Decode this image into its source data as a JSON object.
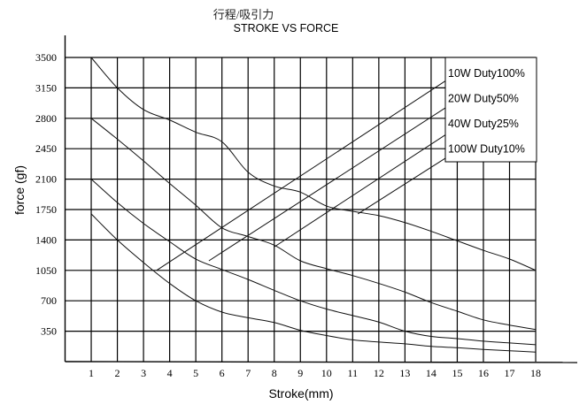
{
  "chart_data": {
    "type": "line",
    "title": "行程/吸引力",
    "subtitle": "STROKE VS FORCE",
    "xlabel": "Stroke(mm)",
    "ylabel": "force (gf)",
    "xlim": [
      0,
      18
    ],
    "ylim": [
      0,
      3500
    ],
    "x_ticks": [
      1,
      2,
      3,
      4,
      5,
      6,
      7,
      8,
      9,
      10,
      11,
      12,
      13,
      14,
      15,
      16,
      17,
      18
    ],
    "y_ticks": [
      350,
      700,
      1050,
      1400,
      1750,
      2100,
      2450,
      2800,
      3150,
      3500
    ],
    "grid": true,
    "legend_placement": "top-right",
    "legend": [
      "10W Duty100%",
      "20W Duty50%",
      "40W Duty25%",
      "100W Duty10%"
    ],
    "x": [
      1,
      2,
      3,
      4,
      5,
      6,
      7,
      8,
      9,
      10,
      11,
      12,
      13,
      14,
      15,
      16,
      17,
      18
    ],
    "series": [
      {
        "values": [
          3500,
          3150,
          2900,
          2780,
          2640,
          2530,
          2180,
          2020,
          1950,
          1790,
          1730,
          1680,
          1600,
          1500,
          1390,
          1280,
          1180,
          1050
        ]
      },
      {
        "values": [
          2800,
          2560,
          2310,
          2050,
          1800,
          1540,
          1440,
          1340,
          1160,
          1070,
          990,
          900,
          800,
          680,
          580,
          480,
          420,
          370
        ]
      },
      {
        "values": [
          2100,
          1830,
          1590,
          1380,
          1180,
          1060,
          945,
          820,
          700,
          605,
          530,
          455,
          350,
          290,
          265,
          235,
          215,
          195
        ]
      },
      {
        "values": [
          1700,
          1400,
          1140,
          900,
          700,
          570,
          505,
          450,
          360,
          300,
          250,
          225,
          205,
          175,
          160,
          140,
          125,
          110
        ]
      }
    ],
    "load_lines": [
      {
        "label": "10W Duty100%",
        "from": [
          3.5,
          1050
        ],
        "to": [
          14.7,
          3260
        ]
      },
      {
        "label": "20W Duty50%",
        "from": [
          5.5,
          1160
        ],
        "to": [
          14.7,
          2950
        ]
      },
      {
        "label": "40W Duty25%",
        "from": [
          8.0,
          1320
        ],
        "to": [
          14.7,
          2640
        ]
      },
      {
        "label": "100W Duty10%",
        "from": [
          11.2,
          1700
        ],
        "to": [
          14.7,
          2370
        ]
      }
    ]
  }
}
